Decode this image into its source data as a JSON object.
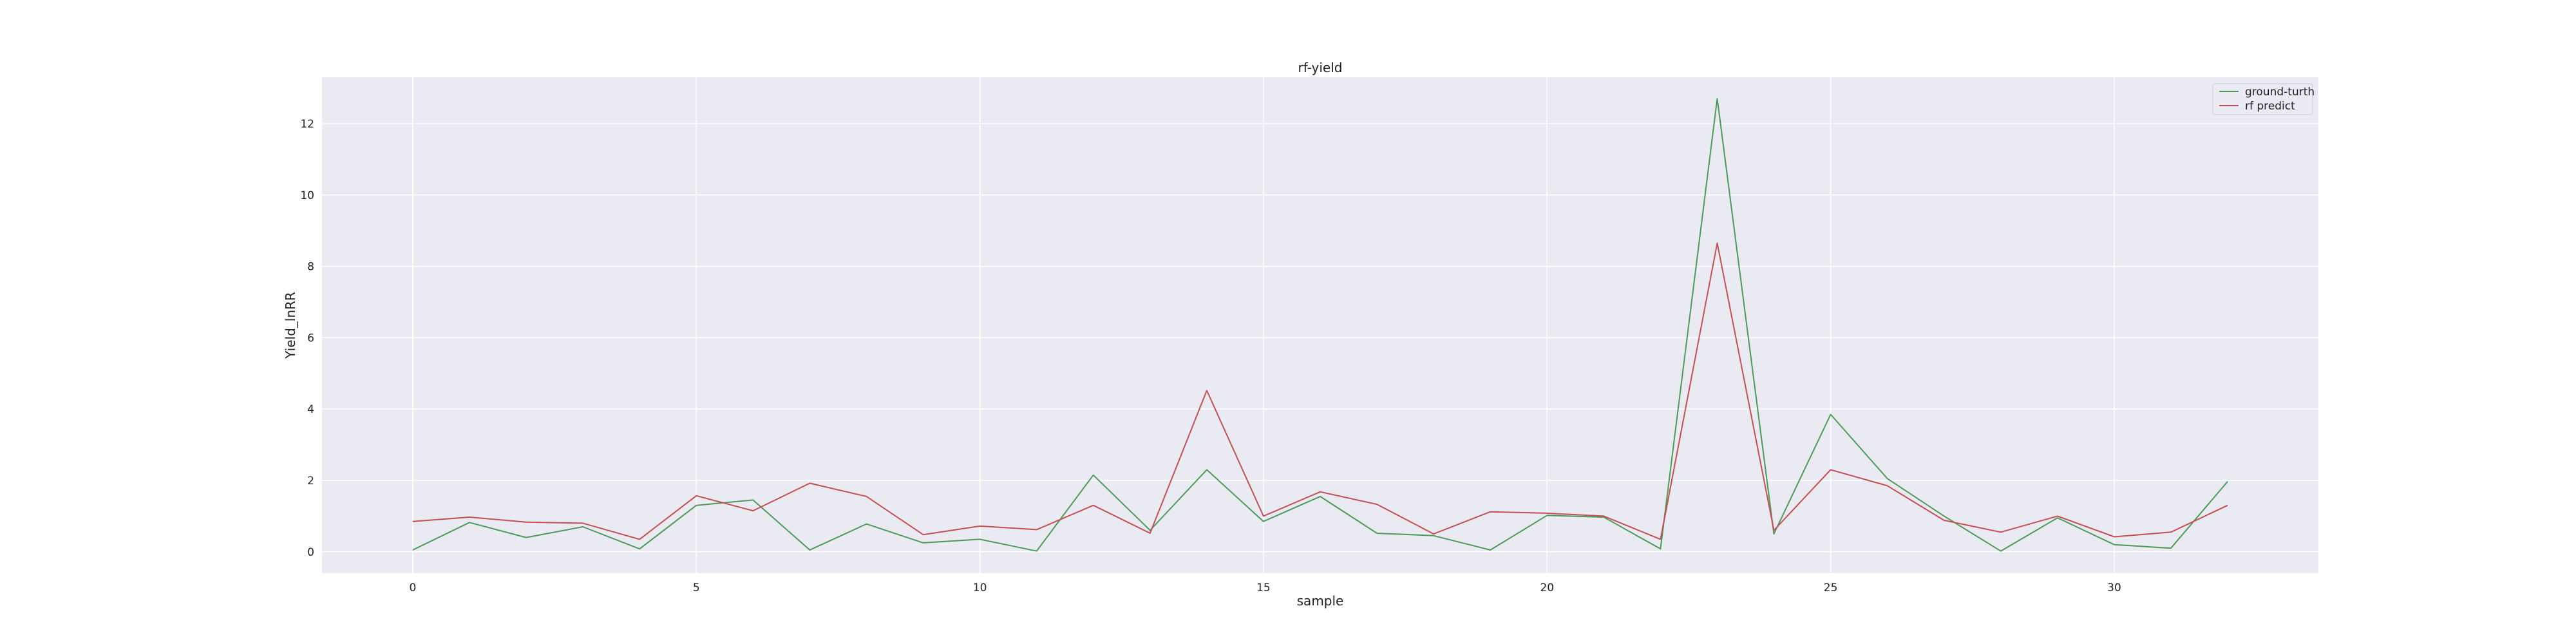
{
  "chart_data": {
    "type": "line",
    "title": "rf-yield",
    "xlabel": "sample",
    "ylabel": "Yield_lnRR",
    "x": [
      0,
      1,
      2,
      3,
      4,
      5,
      6,
      7,
      8,
      9,
      10,
      11,
      12,
      13,
      14,
      15,
      16,
      17,
      18,
      19,
      20,
      21,
      22,
      23,
      24,
      25,
      26,
      27,
      28,
      29,
      30,
      31,
      32
    ],
    "xlim": [
      -1.6,
      33.6
    ],
    "ylim": [
      -0.6,
      13.3
    ],
    "xticks": [
      0,
      5,
      10,
      15,
      20,
      25,
      30
    ],
    "yticks": [
      0,
      2,
      4,
      6,
      8,
      10,
      12
    ],
    "grid": true,
    "legend_position": "top-right",
    "series": [
      {
        "name": "ground-turth",
        "color": "#4c9a5a",
        "values": [
          0.05,
          0.82,
          0.4,
          0.7,
          0.08,
          1.3,
          1.45,
          0.05,
          0.78,
          0.25,
          0.35,
          0.02,
          2.15,
          0.6,
          2.3,
          0.85,
          1.55,
          0.52,
          0.45,
          0.05,
          1.02,
          0.97,
          0.08,
          12.7,
          0.5,
          3.85,
          2.05,
          1.0,
          0.02,
          0.95,
          0.2,
          0.1,
          1.97
        ]
      },
      {
        "name": "rf predict",
        "color": "#c44e52",
        "values": [
          0.85,
          0.97,
          0.83,
          0.8,
          0.35,
          1.57,
          1.15,
          1.92,
          1.55,
          0.48,
          0.72,
          0.62,
          1.3,
          0.52,
          4.52,
          1.0,
          1.68,
          1.33,
          0.5,
          1.12,
          1.08,
          1.0,
          0.35,
          8.65,
          0.6,
          2.3,
          1.85,
          0.88,
          0.55,
          1.0,
          0.42,
          0.55,
          1.3
        ]
      }
    ]
  }
}
